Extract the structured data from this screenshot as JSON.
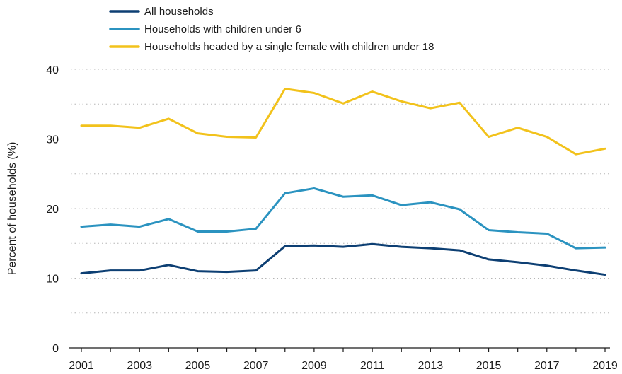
{
  "chart_data": {
    "type": "line",
    "title": "",
    "xlabel": "",
    "ylabel": "Percent of households (%)",
    "x": [
      2001,
      2002,
      2003,
      2004,
      2005,
      2006,
      2007,
      2008,
      2009,
      2010,
      2011,
      2012,
      2013,
      2014,
      2015,
      2016,
      2017,
      2018,
      2019
    ],
    "x_tick_labels": [
      "2001",
      "2003",
      "2005",
      "2007",
      "2009",
      "2011",
      "2013",
      "2015",
      "2017",
      "2019"
    ],
    "y_tick_labels": [
      "0",
      "10",
      "20",
      "30",
      "40"
    ],
    "ylim": [
      0,
      40
    ],
    "xlim": [
      2001,
      2019
    ],
    "grid": "horizontal dotted",
    "legend_position": "top-left",
    "series": [
      {
        "name": "All households",
        "color": "#0d3f73",
        "values": [
          10.7,
          11.1,
          11.1,
          11.9,
          11.0,
          10.9,
          11.1,
          14.6,
          14.7,
          14.5,
          14.9,
          14.5,
          14.3,
          14.0,
          12.7,
          12.3,
          11.8,
          11.1,
          10.5
        ]
      },
      {
        "name": "Households with children under 6",
        "color": "#2b93c0",
        "values": [
          17.4,
          17.7,
          17.4,
          18.5,
          16.7,
          16.7,
          17.1,
          22.2,
          22.9,
          21.7,
          21.9,
          20.5,
          20.9,
          19.9,
          16.9,
          16.6,
          16.4,
          14.3,
          14.4
        ]
      },
      {
        "name": "Households headed by a single female with children under 18",
        "color": "#f2c21b",
        "values": [
          31.9,
          31.9,
          31.6,
          32.9,
          30.8,
          30.3,
          30.2,
          37.2,
          36.6,
          35.1,
          36.8,
          35.4,
          34.4,
          35.2,
          30.3,
          31.6,
          30.3,
          27.8,
          28.6
        ]
      }
    ]
  }
}
